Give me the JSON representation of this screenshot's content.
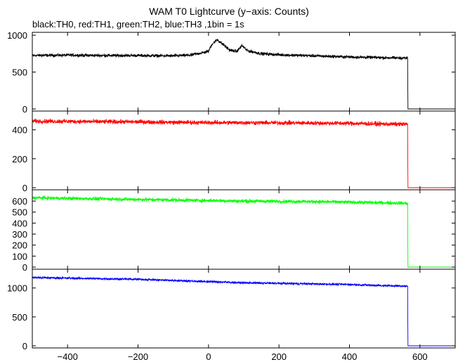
{
  "chart_data": {
    "type": "line",
    "title": "WAM T0 Lightcurve (y−axis: Counts)",
    "subtitle": "black:TH0, red:TH1, green:TH2, blue:TH3 ,1bin = 1s",
    "xlim": [
      -500,
      700
    ],
    "x_ticks": [
      -400,
      -200,
      0,
      200,
      400,
      600
    ],
    "x_tick_labels": [
      "−400",
      "−200",
      "0",
      "200",
      "400",
      "600"
    ],
    "grid": false,
    "series": [
      {
        "name": "TH0",
        "color": "#000000",
        "ylim": [
          0,
          1020
        ],
        "y_ticks": [
          0,
          500,
          1000
        ],
        "x": [
          -500,
          -400,
          -300,
          -200,
          -100,
          -50,
          0,
          10,
          25,
          40,
          60,
          80,
          95,
          110,
          150,
          200,
          300,
          400,
          500,
          565,
          566,
          700
        ],
        "y": [
          725,
          730,
          725,
          725,
          720,
          730,
          780,
          880,
          940,
          880,
          800,
          780,
          860,
          790,
          750,
          735,
          720,
          705,
          695,
          690,
          0,
          0
        ]
      },
      {
        "name": "TH1",
        "color": "#ff0000",
        "ylim": [
          0,
          520
        ],
        "y_ticks": [
          0,
          200,
          400
        ],
        "x": [
          -500,
          -400,
          -300,
          -200,
          -100,
          0,
          100,
          200,
          300,
          400,
          500,
          565,
          566,
          700
        ],
        "y": [
          460,
          458,
          456,
          455,
          452,
          450,
          450,
          448,
          447,
          445,
          440,
          438,
          0,
          0
        ]
      },
      {
        "name": "TH2",
        "color": "#00ff00",
        "ylim": [
          0,
          690
        ],
        "y_ticks": [
          0,
          100,
          200,
          300,
          400,
          500,
          600
        ],
        "x": [
          -500,
          -400,
          -300,
          -200,
          -100,
          0,
          100,
          200,
          300,
          400,
          500,
          565,
          566,
          700
        ],
        "y": [
          630,
          625,
          620,
          615,
          610,
          605,
          600,
          598,
          595,
          590,
          585,
          580,
          0,
          0
        ]
      },
      {
        "name": "TH3",
        "color": "#0000ff",
        "ylim": [
          0,
          1300
        ],
        "y_ticks": [
          0,
          500,
          1000
        ],
        "x": [
          -500,
          -400,
          -300,
          -200,
          -100,
          0,
          100,
          200,
          300,
          400,
          500,
          565,
          566,
          700
        ],
        "y": [
          1180,
          1170,
          1160,
          1150,
          1130,
          1110,
          1090,
          1080,
          1070,
          1060,
          1040,
          1030,
          0,
          0
        ]
      }
    ],
    "noise_amplitude": [
      30,
      22,
      24,
      28
    ]
  }
}
